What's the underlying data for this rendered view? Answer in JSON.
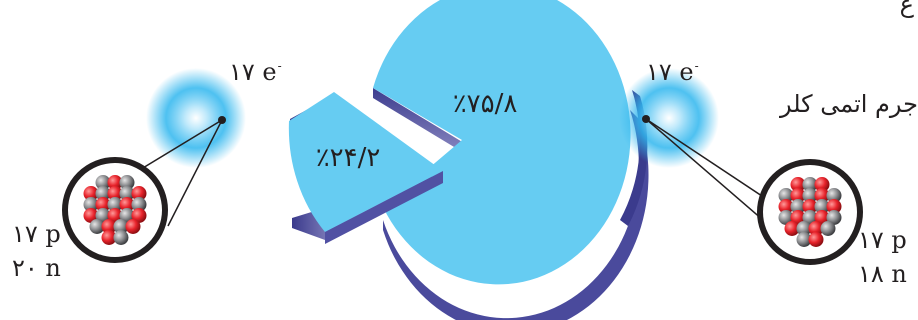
{
  "caption": "جرم اتمی کلر",
  "caption_top_fragment": "ع",
  "pie": {
    "large_slice_label": "٪۷۵/۸",
    "small_slice_label": "٪۲۴/۲"
  },
  "isotope_left": {
    "electrons_number": "۱۷",
    "electrons_symbol": "e",
    "electrons_charge": "-",
    "protons": "۱۷ p",
    "neutrons": "۲۰ n"
  },
  "isotope_right": {
    "electrons_number": "۱۷",
    "electrons_symbol": "e",
    "electrons_charge": "-",
    "protons": "۱۷ p",
    "neutrons": "۱۸ n"
  },
  "colors": {
    "pie_face": "#66ccf2",
    "pie_side": "#5a5aa6",
    "glow": "#2fb6ee",
    "proton": "#e8232b",
    "neutron": "#8c8d90",
    "outline": "#231f20"
  }
}
